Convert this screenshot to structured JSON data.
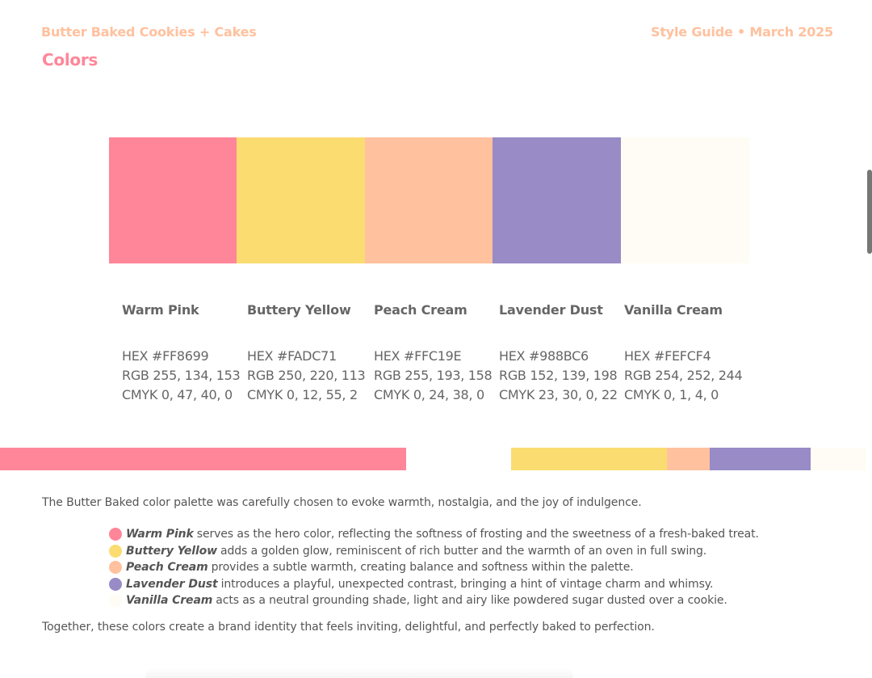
{
  "header": {
    "brand": "Butter Baked Cookies + Cakes",
    "guide_date": "Style Guide • March 2025"
  },
  "section": {
    "title": "Colors"
  },
  "colors": [
    {
      "name": "Warm Pink",
      "hex_line": "HEX #FF8699",
      "rgb_line": "RGB 255, 134, 153",
      "cmyk_line": "CMYK 0, 47, 40, 0",
      "color": "#FF8699"
    },
    {
      "name": "Buttery Yellow",
      "hex_line": "HEX #FADC71",
      "rgb_line": "RGB 250, 220, 113",
      "cmyk_line": "CMYK 0, 12, 55, 2",
      "color": "#FADC71"
    },
    {
      "name": "Peach Cream",
      "hex_line": "HEX #FFC19E",
      "rgb_line": "RGB 255, 193, 158",
      "cmyk_line": "CMYK 0, 24, 38, 0",
      "color": "#FFC19E"
    },
    {
      "name": "Lavender Dust",
      "hex_line": "HEX #988BC6",
      "rgb_line": "RGB 152, 139, 198",
      "cmyk_line": "CMYK 23, 30, 0, 22",
      "color": "#988BC6"
    },
    {
      "name": "Vanilla Cream",
      "hex_line": "HEX #FEFCF4",
      "rgb_line": "RGB 254, 252, 244",
      "cmyk_line": "CMYK 0, 1, 4, 0",
      "color": "#FEFCF4"
    }
  ],
  "description": {
    "intro": "The Butter Baked color palette was carefully chosen to evoke warmth, nostalgia, and the joy of indulgence.",
    "bullets": [
      {
        "name": "Warm Pink",
        "text": "serves as the hero color, reflecting the softness of frosting and the sweetness of a fresh-baked treat.",
        "color": "#FF8699"
      },
      {
        "name": "Buttery Yellow",
        "text": "adds a golden glow, reminiscent of rich butter and the warmth of an oven in full swing.",
        "color": "#FADC71"
      },
      {
        "name": "Peach Cream",
        "text": "provides a subtle warmth, creating balance and softness within the palette.",
        "color": "#FFC19E"
      },
      {
        "name": "Lavender Dust",
        "text": "introduces a playful, unexpected contrast, bringing a hint of vintage charm and whimsy.",
        "color": "#988BC6"
      },
      {
        "name": "Vanilla Cream",
        "text": "acts as a neutral grounding shade, light and airy like powdered sugar dusted over a cookie.",
        "color": "#FEFCF4"
      }
    ],
    "outro": "Together, these colors create a brand identity that feels inviting, delightful, and perfectly baked to perfection."
  }
}
